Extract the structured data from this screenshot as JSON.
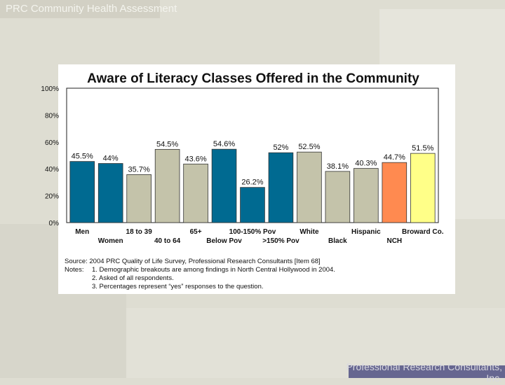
{
  "header": {
    "title": "PRC Community Health Assessment"
  },
  "footer": {
    "line1": "Professional Research Consultants,",
    "line2": "Inc."
  },
  "colors": {
    "primary": "#006a91",
    "secondary": "#c4c3aa",
    "nch": "#ff8a50",
    "broward": "#ffff88"
  },
  "chart_data": {
    "type": "bar",
    "title": "Aware of Literacy Classes Offered in the Community",
    "ylim": [
      0,
      100
    ],
    "yticks": [
      "0%",
      "20%",
      "40%",
      "60%",
      "80%",
      "100%"
    ],
    "categories": [
      "Men",
      "Women",
      "18 to 39",
      "40 to 64",
      "65+",
      "Below Pov",
      "100-150% Pov",
      ">150% Pov",
      "White",
      "Black",
      "Hispanic",
      "NCH",
      "Broward Co."
    ],
    "values": [
      45.5,
      44,
      35.7,
      54.5,
      43.6,
      54.6,
      26.2,
      52,
      52.5,
      38.1,
      40.3,
      44.7,
      51.5
    ],
    "value_labels": [
      "45.5%",
      "44%",
      "35.7%",
      "54.5%",
      "43.6%",
      "54.6%",
      "26.2%",
      "52%",
      "52.5%",
      "38.1%",
      "40.3%",
      "44.7%",
      "51.5%"
    ],
    "bar_colors": [
      "#006a91",
      "#006a91",
      "#c4c3aa",
      "#c4c3aa",
      "#c4c3aa",
      "#006a91",
      "#006a91",
      "#006a91",
      "#c4c3aa",
      "#c4c3aa",
      "#c4c3aa",
      "#ff8a50",
      "#ffff88"
    ],
    "grid": false
  },
  "source": {
    "line1": "Source: 2004 PRC Quality of Life Survey, Professional Research Consultants [Item 68]",
    "notes_label": "Notes:",
    "note1": "1.  Demographic breakouts are among findings in North Central Hollywood in 2004.",
    "note2": "2.  Asked of all respondents.",
    "note3": "3.  Percentages represent “yes” responses to the question."
  }
}
